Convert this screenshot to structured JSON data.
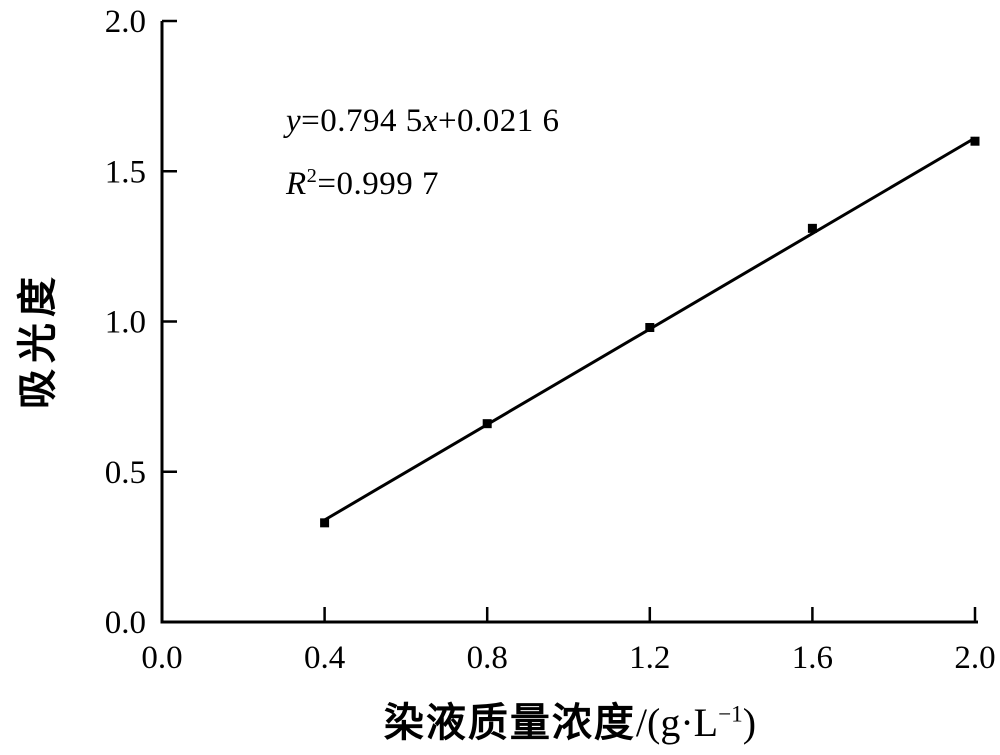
{
  "colors": {
    "foreground": "#000000",
    "background": "#ffffff"
  },
  "chart_data": {
    "type": "scatter",
    "x": [
      0.4,
      0.8,
      1.2,
      1.6,
      2.0
    ],
    "y": [
      0.33,
      0.66,
      0.98,
      1.31,
      1.6
    ],
    "fit": {
      "slope": 0.7945,
      "intercept": 0.0216,
      "x_start": 0.4,
      "x_end": 2.0
    },
    "title": "",
    "xlabel": "染液质量浓度/(g·L⁻¹)",
    "ylabel": "吸光度",
    "xlim": [
      0.0,
      2.0
    ],
    "ylim": [
      0.0,
      2.0
    ],
    "x_ticks": [
      0.0,
      0.4,
      0.8,
      1.2,
      1.6,
      2.0
    ],
    "x_tick_labels": [
      "0.0",
      "0.4",
      "0.8",
      "1.2",
      "1.6",
      "2.0"
    ],
    "y_ticks": [
      0.0,
      0.5,
      1.0,
      1.5,
      2.0
    ],
    "y_tick_labels": [
      "0.0",
      "0.5",
      "1.0",
      "1.5",
      "2.0"
    ],
    "annotations": [
      "y=0.794 5x+0.021 6",
      "R²=0.999 7"
    ],
    "grid": false,
    "legend": null,
    "marker": "square",
    "color": "#000000"
  },
  "equation": {
    "y_var": "y",
    "slope_part": "=0.794 5",
    "x_var": "x",
    "intercept_part": "+0.021 6",
    "r_var": "R",
    "r_sup": "2",
    "r_value": "=0.999 7"
  },
  "axes": {
    "x_title_cn": "染液质量浓度",
    "x_unit_prefix": "/(g·L",
    "x_unit_sup": "−1",
    "x_unit_suffix": ")",
    "y_title": "吸光度"
  }
}
